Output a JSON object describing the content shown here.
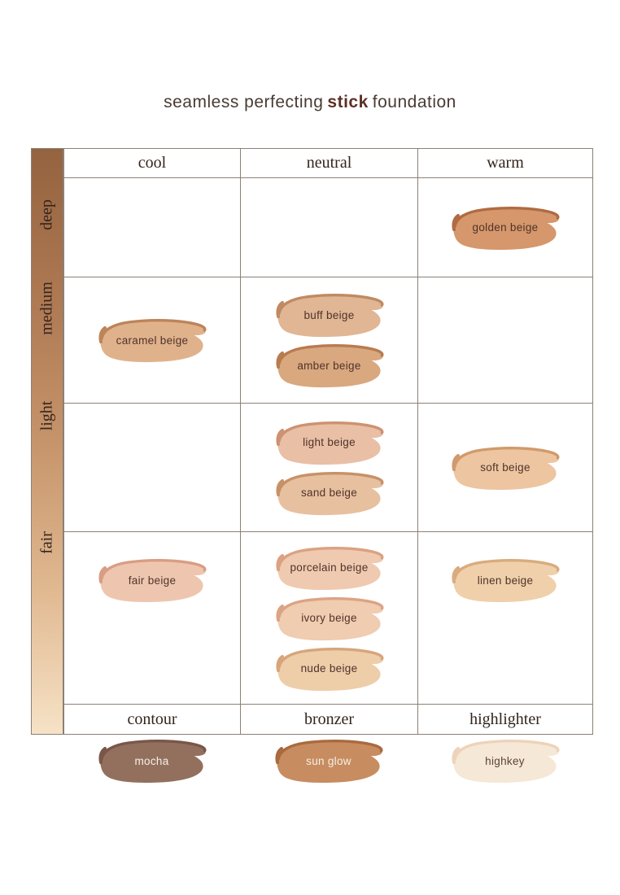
{
  "title": {
    "pre": "seamless perfecting",
    "bold": "stick",
    "post": "foundation"
  },
  "grid": {
    "column_headers": [
      "cool",
      "neutral",
      "warm"
    ],
    "row_labels": [
      "deep",
      "medium",
      "light",
      "fair"
    ],
    "footer_headers": [
      "contour",
      "bronzer",
      "highlighter"
    ],
    "cells": {
      "deep": {
        "cool": [],
        "neutral": [],
        "warm": [
          {
            "label": "golden beige",
            "fill": "#d5976b",
            "edge": "#b06b42",
            "text": "#4f332a"
          }
        ]
      },
      "medium": {
        "cool": [
          {
            "label": "caramel beige",
            "fill": "#e0b28c",
            "edge": "#bd8459",
            "text": "#4f332a"
          }
        ],
        "neutral": [
          {
            "label": "buff beige",
            "fill": "#e0b694",
            "edge": "#c08a60",
            "text": "#4f332a"
          },
          {
            "label": "amber beige",
            "fill": "#d9a87f",
            "edge": "#b87b50",
            "text": "#4f332a"
          }
        ],
        "warm": []
      },
      "light": {
        "cool": [],
        "neutral": [
          {
            "label": "light beige",
            "fill": "#e9bfa6",
            "edge": "#cd9271",
            "text": "#4f332a"
          },
          {
            "label": "sand beige",
            "fill": "#e7c0a0",
            "edge": "#c79167",
            "text": "#4f332a"
          }
        ],
        "warm": [
          {
            "label": "soft beige",
            "fill": "#edc5a1",
            "edge": "#d09a6c",
            "text": "#4f332a"
          }
        ]
      },
      "fair": {
        "cool": [
          {
            "label": "fair beige",
            "fill": "#eec6af",
            "edge": "#d99d83",
            "text": "#4f332a"
          }
        ],
        "neutral": [
          {
            "label": "porcelain beige",
            "fill": "#efcab0",
            "edge": "#dba182",
            "text": "#4f332a"
          },
          {
            "label": "ivory beige",
            "fill": "#f0ccb0",
            "edge": "#dba484",
            "text": "#4f332a"
          },
          {
            "label": "nude beige",
            "fill": "#eecda9",
            "edge": "#d6a57b",
            "text": "#4f332a"
          }
        ],
        "warm": [
          {
            "label": "linen beige",
            "fill": "#efd0aa",
            "edge": "#d9ab7d",
            "text": "#4f332a"
          }
        ]
      }
    }
  },
  "extras": [
    {
      "label": "mocha",
      "fill": "#93705e",
      "edge": "#7a564a",
      "text": "#f7efe6"
    },
    {
      "label": "sun glow",
      "fill": "#c78c60",
      "edge": "#aa6a3f",
      "text": "#f7efe6"
    },
    {
      "label": "highkey",
      "fill": "#f6e8d6",
      "edge": "#ecd3ba",
      "text": "#5a4437"
    }
  ],
  "colors": {
    "grid_line": "#8b8078",
    "title_text": "#4a3a33",
    "title_accent": "#5d2f26",
    "header_text": "#33241d",
    "swatch_label": "#4f332a"
  },
  "strip_gradient": [
    "#94633f",
    "#ad7852",
    "#c6946b",
    "#e0b890",
    "#f6e2c6"
  ],
  "chart_data": {
    "type": "table",
    "title": "seamless perfecting stick foundation",
    "columns": [
      "cool",
      "neutral",
      "warm"
    ],
    "rows": [
      "deep",
      "medium",
      "light",
      "fair"
    ],
    "cells": {
      "deep": {
        "cool": [],
        "neutral": [],
        "warm": [
          "golden beige"
        ]
      },
      "medium": {
        "cool": [
          "caramel beige"
        ],
        "neutral": [
          "buff beige",
          "amber beige"
        ],
        "warm": []
      },
      "light": {
        "cool": [],
        "neutral": [
          "light beige",
          "sand beige"
        ],
        "warm": [
          "soft beige"
        ]
      },
      "fair": {
        "cool": [
          "fair beige"
        ],
        "neutral": [
          "porcelain beige",
          "ivory beige",
          "nude beige"
        ],
        "warm": [
          "linen beige"
        ]
      }
    },
    "footer": {
      "contour": "mocha",
      "bronzer": "sun glow",
      "highlighter": "highkey"
    },
    "legend_position": "none",
    "grid": true
  }
}
